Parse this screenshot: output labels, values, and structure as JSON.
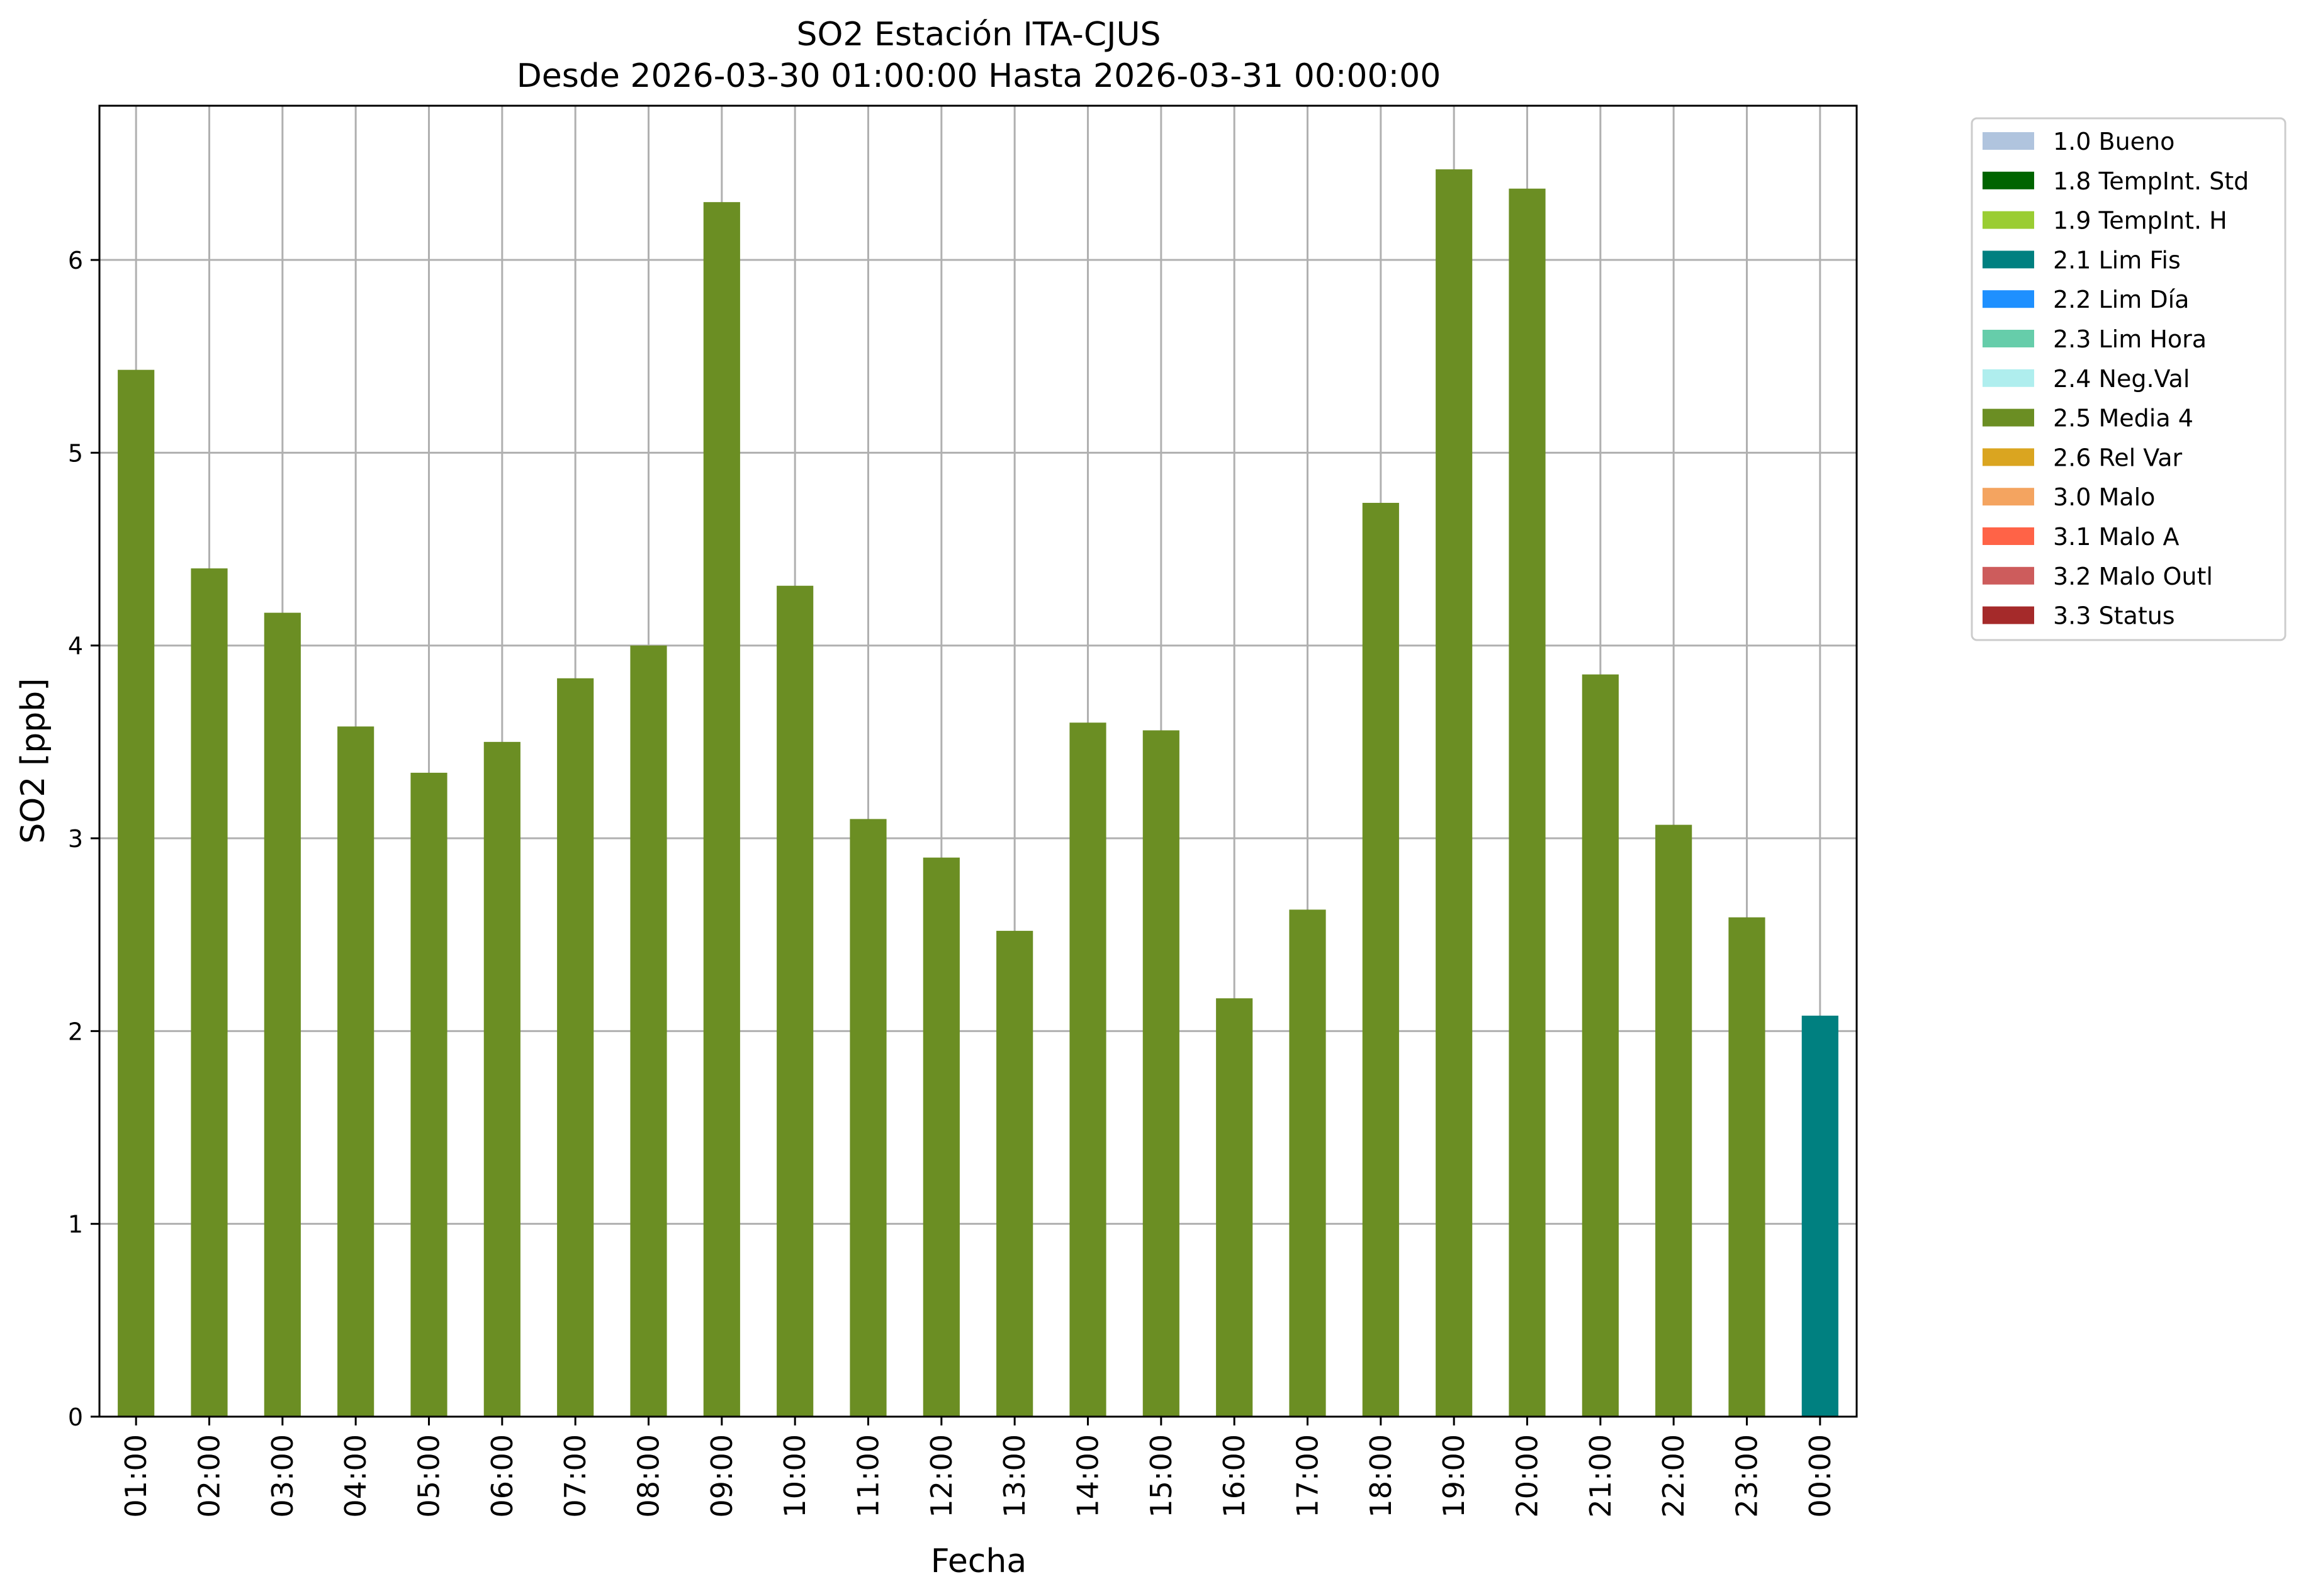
{
  "chart_data": {
    "type": "bar",
    "title": "SO2 Estación ITA-CJUS",
    "subtitle": "Desde 2026-03-30 01:00:00 Hasta 2026-03-31 00:00:00",
    "xlabel": "Fecha",
    "ylabel": "SO2 [ppb]",
    "ylim": [
      0,
      6.8
    ],
    "yticks": [
      "0",
      "1",
      "2",
      "3",
      "4",
      "5",
      "6"
    ],
    "grid": true,
    "legend_position": "outside-top-right",
    "categories": [
      "01:00",
      "02:00",
      "03:00",
      "04:00",
      "05:00",
      "06:00",
      "07:00",
      "08:00",
      "09:00",
      "10:00",
      "11:00",
      "12:00",
      "13:00",
      "14:00",
      "15:00",
      "16:00",
      "17:00",
      "18:00",
      "19:00",
      "20:00",
      "21:00",
      "22:00",
      "23:00",
      "00:00"
    ],
    "values": [
      5.43,
      4.4,
      4.17,
      3.58,
      3.34,
      3.5,
      3.83,
      4.0,
      6.3,
      4.31,
      3.1,
      2.9,
      2.52,
      3.6,
      3.56,
      2.17,
      2.63,
      4.74,
      6.47,
      6.37,
      3.85,
      3.07,
      2.59,
      2.08
    ],
    "value_flags": [
      "2.5 Media 4",
      "2.5 Media 4",
      "2.5 Media 4",
      "2.5 Media 4",
      "2.5 Media 4",
      "2.5 Media 4",
      "2.5 Media 4",
      "2.5 Media 4",
      "2.5 Media 4",
      "2.5 Media 4",
      "2.5 Media 4",
      "2.5 Media 4",
      "2.5 Media 4",
      "2.5 Media 4",
      "2.5 Media 4",
      "2.5 Media 4",
      "2.5 Media 4",
      "2.5 Media 4",
      "2.5 Media 4",
      "2.5 Media 4",
      "2.5 Media 4",
      "2.5 Media 4",
      "2.5 Media 4",
      "2.1 Lim Fis"
    ],
    "legend": [
      {
        "label": "1.0 Bueno",
        "color": "#b0c4de"
      },
      {
        "label": "1.8 TempInt. Std",
        "color": "#006400"
      },
      {
        "label": "1.9 TempInt. H",
        "color": "#9acd32"
      },
      {
        "label": "2.1 Lim Fis",
        "color": "#008080"
      },
      {
        "label": "2.2 Lim Día",
        "color": "#1e90ff"
      },
      {
        "label": "2.3 Lim Hora",
        "color": "#66cdaa"
      },
      {
        "label": "2.4 Neg.Val",
        "color": "#afeeee"
      },
      {
        "label": "2.5 Media 4",
        "color": "#6b8e23"
      },
      {
        "label": "2.6 Rel Var",
        "color": "#daa520"
      },
      {
        "label": "3.0 Malo",
        "color": "#f4a460"
      },
      {
        "label": "3.1 Malo A",
        "color": "#ff6347"
      },
      {
        "label": "3.2 Malo Outl",
        "color": "#cd5c5c"
      },
      {
        "label": "3.3 Status",
        "color": "#a52a2a"
      }
    ]
  }
}
